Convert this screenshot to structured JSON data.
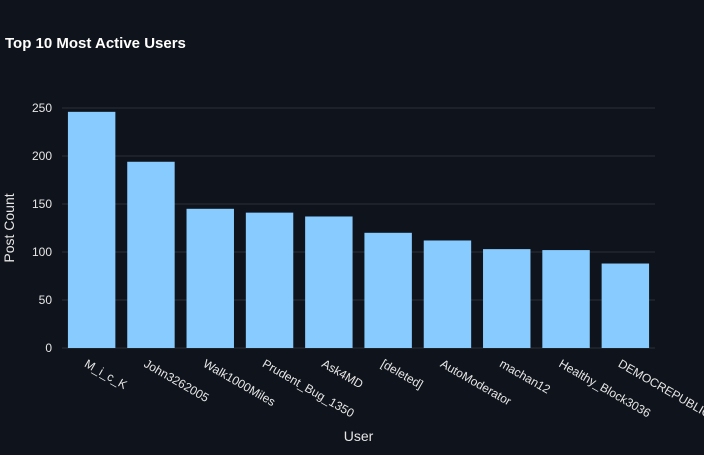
{
  "chart_data": {
    "type": "bar",
    "title": "Top 10 Most Active Users",
    "xlabel": "User",
    "ylabel": "Post Count",
    "categories": [
      "M_i_c_K",
      "John3262005",
      "Walk1000Miles",
      "Prudent_Bug_1350",
      "Ask4MD",
      "[deleted]",
      "AutoModerator",
      "machan12",
      "Healthy_Block3036",
      "DEMOCREPUBLICAN"
    ],
    "values": [
      246,
      194,
      145,
      141,
      137,
      120,
      112,
      103,
      102,
      88
    ],
    "ylim": [
      0,
      250
    ],
    "yticks": [
      0,
      50,
      100,
      150,
      200,
      250
    ],
    "grid": true,
    "bar_color": "#87cbff",
    "background_color": "#0f131b",
    "grid_color": "#2b303a",
    "text_color": "#e6e6e6"
  }
}
